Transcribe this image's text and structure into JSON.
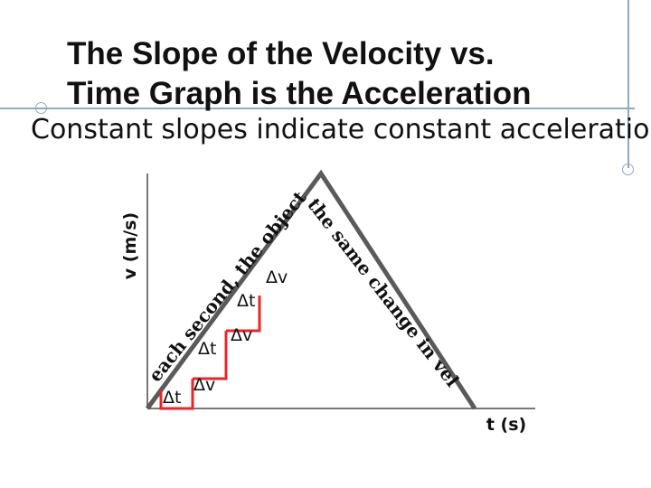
{
  "slide": {
    "title_line1": "The Slope of the Velocity vs.",
    "title_line2": "Time Graph is the Acceleration",
    "subtitle": "Constant slopes indicate constant acceleration."
  },
  "graph": {
    "y_axis_label": "v (m/s)",
    "x_axis_label": "t (s)",
    "steps": [
      {
        "dt": "Δt",
        "dv": "Δv"
      },
      {
        "dt": "Δt",
        "dv": "Δv"
      },
      {
        "dt": "Δt",
        "dv": "Δv"
      }
    ],
    "rising_annotation": "each second, the object experiences",
    "falling_annotation": "the same change in velocity",
    "line_color": "#5a5a5a",
    "step_color": "#e8262a"
  }
}
